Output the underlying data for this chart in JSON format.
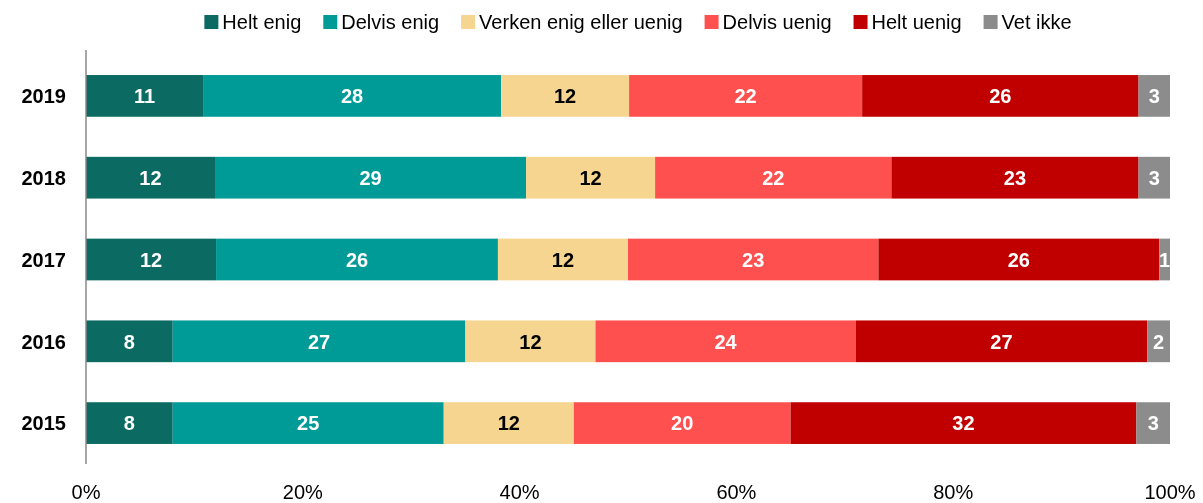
{
  "chart_data": {
    "type": "bar",
    "orientation": "horizontal",
    "stacked": true,
    "categories": [
      "2019",
      "2018",
      "2017",
      "2016",
      "2015"
    ],
    "series": [
      {
        "name": "Helt enig",
        "color": "#0b6b63",
        "values": [
          10.8,
          11.9,
          12.0,
          8.0,
          8.0
        ],
        "value_labels": [
          "11",
          "12",
          "12",
          "8",
          "8"
        ]
      },
      {
        "name": "Delvis enig",
        "color": "#009a97",
        "values": [
          27.5,
          28.7,
          26.0,
          27.0,
          25.0
        ],
        "value_labels": [
          "28",
          "29",
          "26",
          "27",
          "25"
        ]
      },
      {
        "name": "Verken enig eller uenig",
        "color": "#f5d58f",
        "values": [
          11.8,
          11.9,
          12.0,
          12.0,
          12.0
        ],
        "value_labels": [
          "12",
          "12",
          "12",
          "12",
          "12"
        ]
      },
      {
        "name": "Delvis uenig",
        "color": "#ff5050",
        "values": [
          21.5,
          21.8,
          23.1,
          24.0,
          20.0
        ],
        "value_labels": [
          "22",
          "22",
          "23",
          "24",
          "20"
        ]
      },
      {
        "name": "Helt uenig",
        "color": "#c00000",
        "values": [
          25.5,
          22.8,
          25.9,
          26.9,
          31.9
        ],
        "value_labels": [
          "26",
          "23",
          "26",
          "27",
          "32"
        ]
      },
      {
        "name": "Vet ikke",
        "color": "#8c8c8c",
        "values": [
          2.9,
          2.9,
          1.0,
          2.1,
          3.1
        ],
        "value_labels": [
          "3",
          "3",
          "1",
          "2",
          "3"
        ]
      }
    ],
    "xlim": [
      0,
      100
    ],
    "xticks": [
      {
        "value": 0,
        "label": "0%"
      },
      {
        "value": 20,
        "label": "20%"
      },
      {
        "value": 40,
        "label": "40%"
      },
      {
        "value": 60,
        "label": "60%"
      },
      {
        "value": 80,
        "label": "80%"
      },
      {
        "value": 100,
        "label": "100%"
      }
    ],
    "legend": "top",
    "grid": false
  }
}
